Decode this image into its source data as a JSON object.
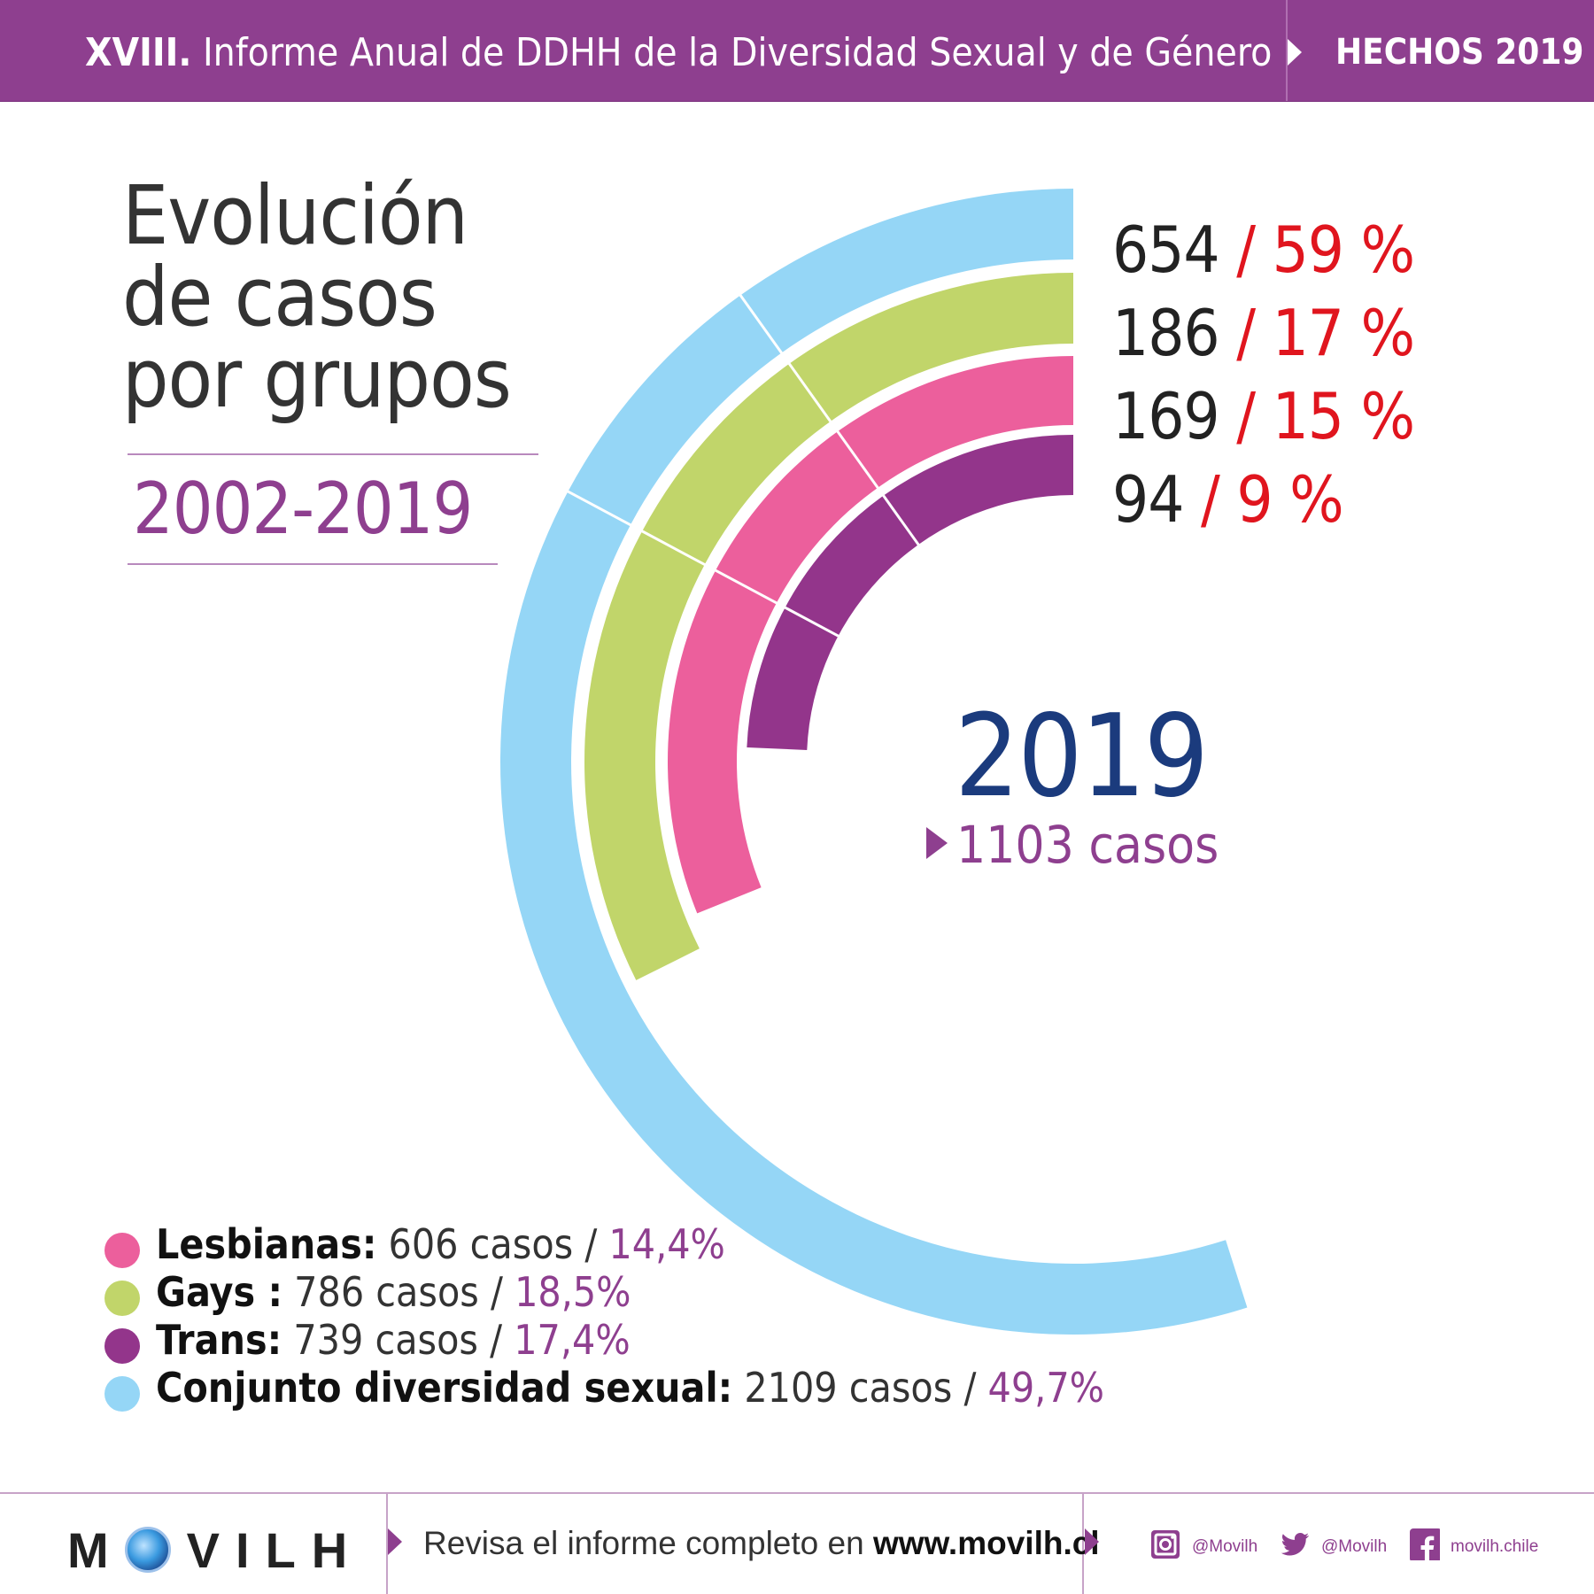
{
  "header": {
    "edition": "XVIII.",
    "title": "Informe Anual de DDHH de la Diversidad Sexual y de Género",
    "section": "HECHOS 2019"
  },
  "heading": {
    "lines": [
      "Evolución",
      "de casos",
      "por grupos"
    ],
    "period": "2002-2019"
  },
  "colors": {
    "header_purple": "#8e3f8f",
    "conjunto": "#95d6f6",
    "gays": "#c1d56a",
    "lesbianas": "#ec5f9c",
    "trans": "#93358b",
    "pct_red": "#e0151e",
    "year_blue": "#1b3b7d"
  },
  "chart_data": {
    "type": "radial-bar",
    "year": "2019",
    "total_label": "1103 casos",
    "series": [
      {
        "group": "Conjunto diversidad sexual",
        "value": 654,
        "value_label": "654",
        "percent": 59,
        "percent_label": "/ 59 %",
        "color": "#95d6f6"
      },
      {
        "group": "Gays",
        "value": 186,
        "value_label": "186",
        "percent": 17,
        "percent_label": "/ 17 %",
        "color": "#c1d56a"
      },
      {
        "group": "Lesbianas",
        "value": 169,
        "value_label": "169",
        "percent": 15,
        "percent_label": "/ 15 %",
        "color": "#ec5f9c"
      },
      {
        "group": "Trans",
        "value": 94,
        "value_label": "94",
        "percent": 9,
        "percent_label": "/ 9 %",
        "color": "#93358b"
      }
    ]
  },
  "legend": [
    {
      "name": "Lesbianas:",
      "cases": "606 casos /",
      "percent": "14,4%",
      "color": "#ec5f9c"
    },
    {
      "name": "Gays :",
      "cases": "786 casos /",
      "percent": "18,5%",
      "color": "#c1d56a"
    },
    {
      "name": "Trans:",
      "cases": "739 casos /",
      "percent": "17,4%",
      "color": "#93358b"
    },
    {
      "name": "Conjunto diversidad sexual:",
      "cases": "2109 casos /",
      "percent": "49,7%",
      "color": "#95d6f6"
    }
  ],
  "footer": {
    "logo_left": "M",
    "logo_right": "VILH",
    "cta_prefix": "Revisa el informe completo en",
    "cta_link": "www.movilh.cl",
    "instagram": "@Movilh",
    "twitter": "@Movilh",
    "facebook": "movilh.chile"
  }
}
